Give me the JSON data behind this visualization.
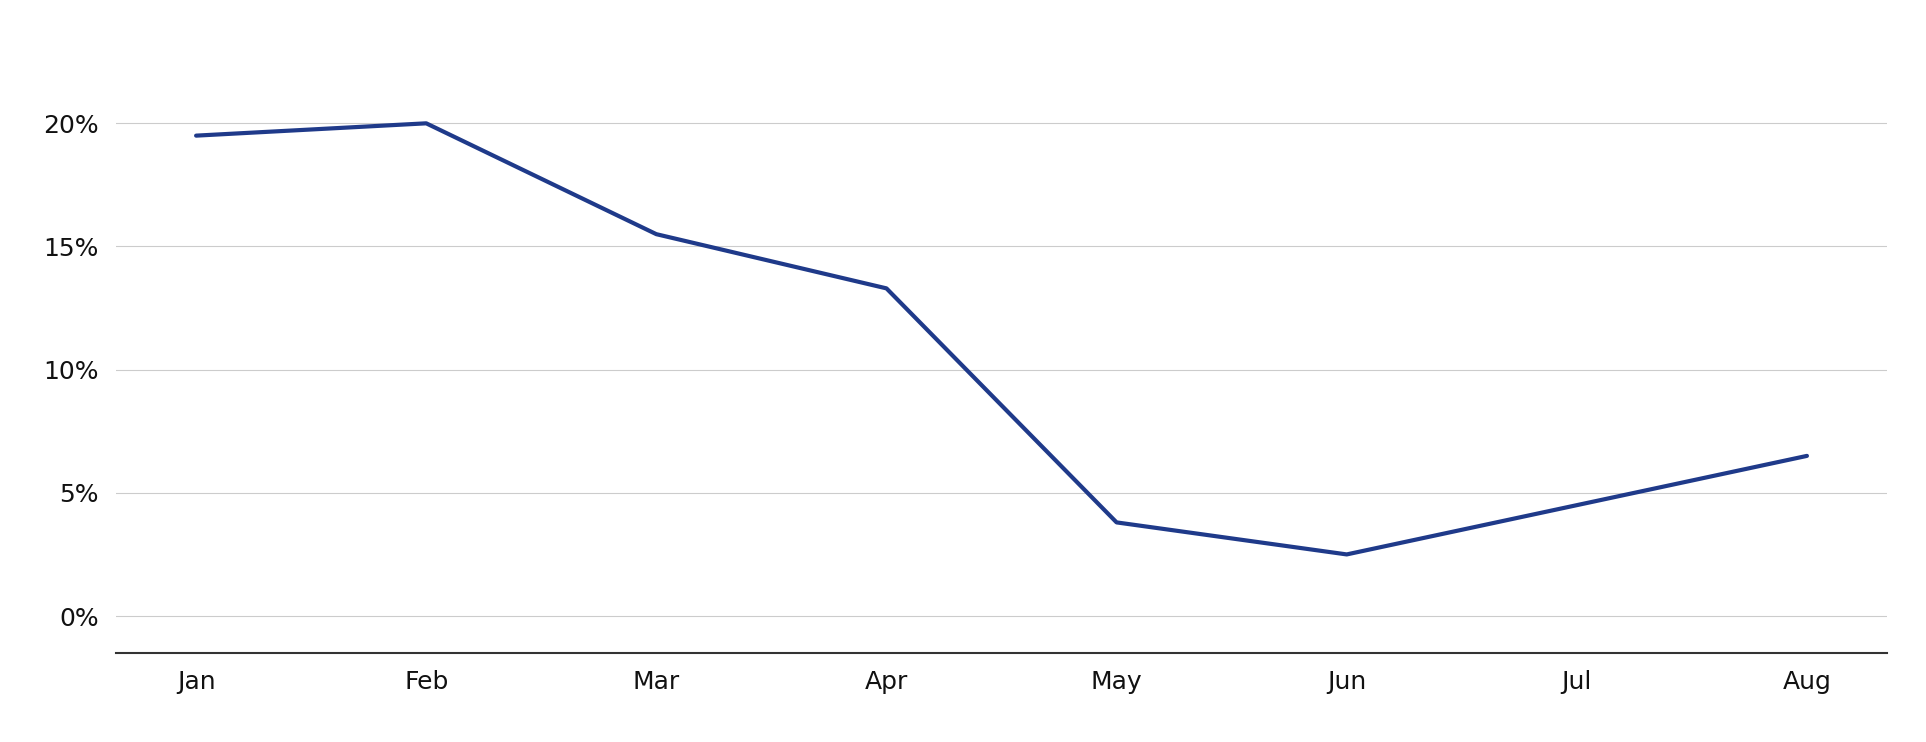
{
  "x_labels": [
    "Jan",
    "Feb",
    "Mar",
    "Apr",
    "May",
    "Jun",
    "Jul",
    "Aug"
  ],
  "y_values": [
    0.195,
    0.2,
    0.155,
    0.133,
    0.038,
    0.025,
    0.045,
    0.065
  ],
  "line_color": "#1f3a8a",
  "line_width": 3.0,
  "yticks": [
    0.0,
    0.05,
    0.1,
    0.15,
    0.2
  ],
  "ytick_labels": [
    "0%",
    "5%",
    "10%",
    "15%",
    "20%"
  ],
  "ylim": [
    -0.015,
    0.235
  ],
  "xlim_left": -0.35,
  "xlim_right": 7.35,
  "background_color": "#ffffff",
  "grid_color": "#cccccc",
  "grid_linewidth": 0.8,
  "tick_fontsize": 18,
  "tick_color": "#111111",
  "spine_color": "#333333",
  "font_family": "Georgia"
}
